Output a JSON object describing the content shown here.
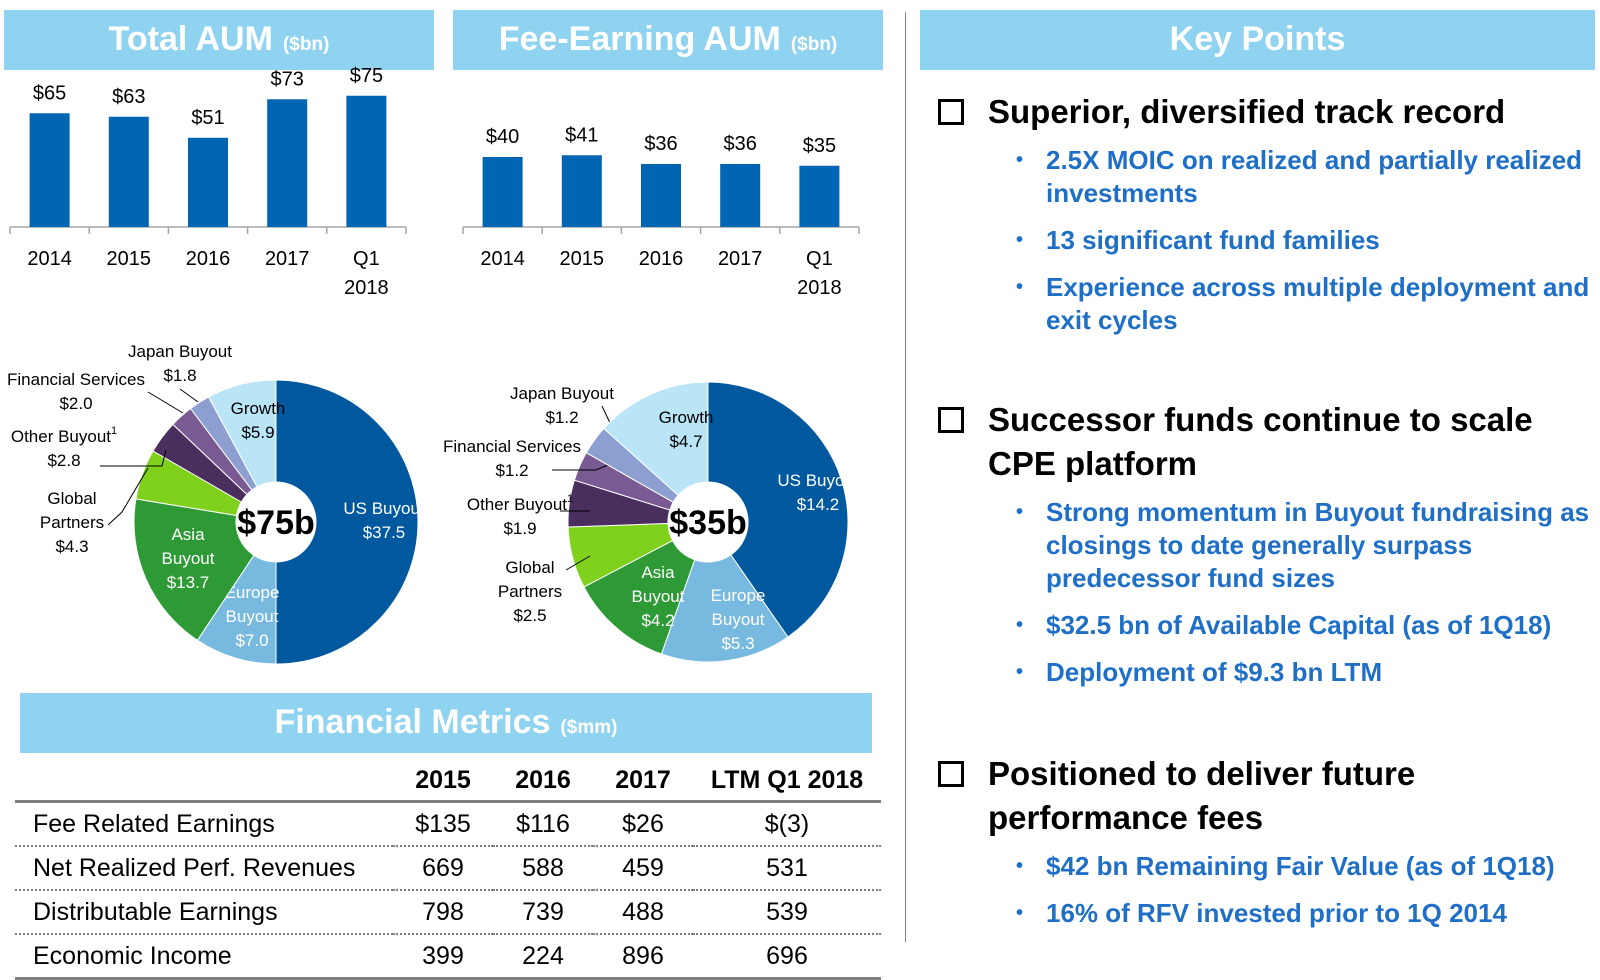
{
  "headers": {
    "total_aum": {
      "title": "Total AUM",
      "unit": "($bn)"
    },
    "fee_aum": {
      "title": "Fee-Earning AUM",
      "unit": "($bn)"
    },
    "key_points": {
      "title": "Key Points"
    },
    "financial": {
      "title": "Financial Metrics",
      "unit": "($mm)"
    }
  },
  "chart_data": [
    {
      "type": "bar",
      "title": "Total AUM ($bn)",
      "categories": [
        [
          "2014"
        ],
        [
          "2015"
        ],
        [
          "2016"
        ],
        [
          "2017"
        ],
        [
          "Q1",
          "2018"
        ]
      ],
      "values": [
        65,
        63,
        51,
        73,
        75
      ],
      "value_labels": [
        "$65",
        "$63",
        "$51",
        "$73",
        "$75"
      ],
      "ylim": [
        0,
        80
      ],
      "color": "#0066b3"
    },
    {
      "type": "bar",
      "title": "Fee-Earning AUM ($bn)",
      "categories": [
        [
          "2014"
        ],
        [
          "2015"
        ],
        [
          "2016"
        ],
        [
          "2017"
        ],
        [
          "Q1",
          "2018"
        ]
      ],
      "values": [
        40,
        41,
        36,
        36,
        35
      ],
      "value_labels": [
        "$40",
        "$41",
        "$36",
        "$36",
        "$35"
      ],
      "ylim": [
        0,
        80
      ],
      "color": "#0066b3"
    },
    {
      "type": "pie",
      "title": "$75b",
      "total_label": "$75b",
      "slices": [
        {
          "name": "US Buyout",
          "value": 37.5,
          "label": "$37.5",
          "color": "#00589f",
          "text_color": "#ffffff"
        },
        {
          "name": "Europe Buyout",
          "value": 7.0,
          "label": "$7.0",
          "color": "#78b9e0",
          "text_color": "#ffffff"
        },
        {
          "name": "Asia Buyout",
          "value": 13.7,
          "label": "$13.7",
          "color": "#2e9a35",
          "text_color": "#ffffff"
        },
        {
          "name": "Global Partners",
          "value": 4.3,
          "label": "$4.3",
          "color": "#7fd11b",
          "text_color": "#000000"
        },
        {
          "name": "Other Buyout",
          "superscript": "1",
          "value": 2.8,
          "label": "$2.8",
          "color": "#4a2e5e",
          "text_color": "#000000"
        },
        {
          "name": "Financial Services",
          "value": 2.0,
          "label": "$2.0",
          "color": "#7a5a92",
          "text_color": "#000000"
        },
        {
          "name": "Japan Buyout",
          "value": 1.8,
          "label": "$1.8",
          "color": "#8d9fd0",
          "text_color": "#000000"
        },
        {
          "name": "Growth",
          "value": 5.9,
          "label": "$5.9",
          "color": "#b9e5f7",
          "text_color": "#000000"
        }
      ]
    },
    {
      "type": "pie",
      "title": "$35b",
      "total_label": "$35b",
      "slices": [
        {
          "name": "US Buyout",
          "value": 14.2,
          "label": "$14.2",
          "color": "#00589f",
          "text_color": "#ffffff"
        },
        {
          "name": "Europe Buyout",
          "value": 5.3,
          "label": "$5.3",
          "color": "#78b9e0",
          "text_color": "#ffffff"
        },
        {
          "name": "Asia Buyout",
          "value": 4.2,
          "label": "$4.2",
          "color": "#2e9a35",
          "text_color": "#ffffff"
        },
        {
          "name": "Global Partners",
          "value": 2.5,
          "label": "$2.5",
          "color": "#7fd11b",
          "text_color": "#000000"
        },
        {
          "name": "Other Buyout",
          "superscript": "1",
          "value": 1.9,
          "label": "$1.9",
          "color": "#4a2e5e",
          "text_color": "#000000"
        },
        {
          "name": "Financial Services",
          "value": 1.2,
          "label": "$1.2",
          "color": "#7a5a92",
          "text_color": "#000000"
        },
        {
          "name": "Japan Buyout",
          "value": 1.2,
          "label": "$1.2",
          "color": "#8d9fd0",
          "text_color": "#000000"
        },
        {
          "name": "Growth",
          "value": 4.7,
          "label": "$4.7",
          "color": "#b9e5f7",
          "text_color": "#000000"
        }
      ]
    },
    {
      "type": "table",
      "title": "Financial Metrics ($mm)",
      "columns": [
        "",
        "2015",
        "2016",
        "2017",
        "LTM Q1 2018"
      ],
      "rows": [
        [
          "Fee Related Earnings",
          "$135",
          "$116",
          "$26",
          "$(3)"
        ],
        [
          "Net Realized Perf. Revenues",
          "669",
          "588",
          "459",
          "531"
        ],
        [
          "Distributable Earnings",
          "798",
          "739",
          "488",
          "539"
        ],
        [
          "Economic Income",
          "399",
          "224",
          "896",
          "696"
        ]
      ]
    }
  ],
  "key_points": [
    {
      "title": "Superior, diversified track record",
      "bullets": [
        "2.5X MOIC on realized and partially realized investments",
        "13 significant fund families",
        "Experience across multiple deployment and exit cycles"
      ]
    },
    {
      "title": "Successor funds continue to scale CPE platform",
      "bullets": [
        "Strong momentum in Buyout fundraising as closings to date generally surpass predecessor fund sizes",
        "$32.5 bn of Available Capital (as of 1Q18)",
        "Deployment of $9.3 bn LTM"
      ]
    },
    {
      "title": "Positioned to deliver future performance fees",
      "bullets": [
        "$42 bn Remaining Fair Value (as of 1Q18)",
        "16% of RFV invested prior to 1Q 2014"
      ]
    }
  ]
}
